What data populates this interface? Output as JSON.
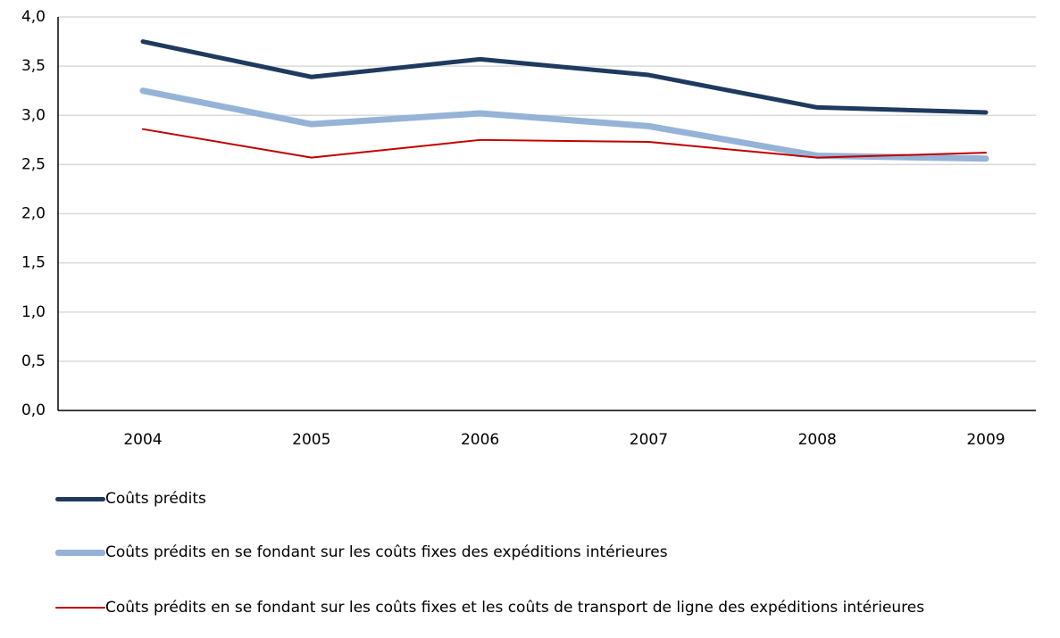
{
  "chart_data": {
    "type": "line",
    "categories": [
      "2004",
      "2005",
      "2006",
      "2007",
      "2008",
      "2009"
    ],
    "series": [
      {
        "name": "Coûts prédits",
        "color": "#1f3a5f",
        "width": 5,
        "values": [
          3.75,
          3.39,
          3.57,
          3.41,
          3.08,
          3.03
        ]
      },
      {
        "name": "Coûts prédits en se fondant sur les coûts fixes des expéditions intérieures",
        "color": "#95b3d7",
        "width": 7,
        "values": [
          3.25,
          2.91,
          3.02,
          2.89,
          2.59,
          2.56
        ]
      },
      {
        "name": "Coûts prédits en se fondant sur les coûts fixes et les coûts de transport de ligne des expéditions intérieures",
        "color": "#c00000",
        "width": 2,
        "values": [
          2.86,
          2.57,
          2.75,
          2.73,
          2.57,
          2.62
        ]
      }
    ],
    "ylim": [
      0,
      4
    ],
    "yticks": [
      {
        "value": 0,
        "label": "0,0"
      },
      {
        "value": 0.5,
        "label": "0,5"
      },
      {
        "value": 1,
        "label": "1,0"
      },
      {
        "value": 1.5,
        "label": "1,5"
      },
      {
        "value": 2,
        "label": "2,0"
      },
      {
        "value": 2.5,
        "label": "2,5"
      },
      {
        "value": 3,
        "label": "3,0"
      },
      {
        "value": 3.5,
        "label": "3,5"
      },
      {
        "value": 4,
        "label": "4,0"
      }
    ],
    "grid": true,
    "legend": "bottom"
  }
}
